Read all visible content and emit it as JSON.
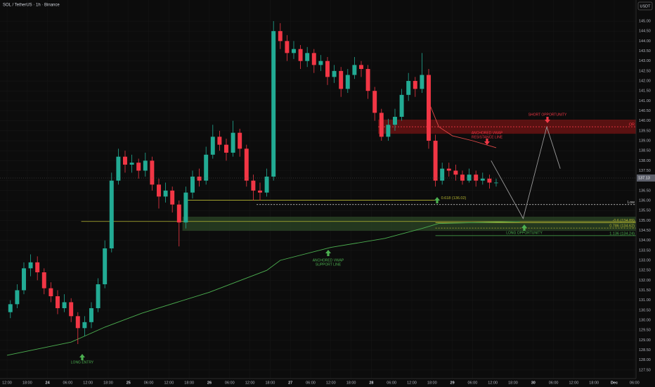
{
  "chart_data": {
    "type": "candlestick",
    "title": "SOL / TetherUS · 1h · Binance",
    "currency": "USDT",
    "up_color": "#22ab94",
    "down_color": "#f23645",
    "grid": true,
    "xlim": [
      -2.08,
      186.46
    ],
    "ylim": [
      127.07,
      146.06
    ],
    "xticks": [
      {
        "value": 0,
        "label": "12:00"
      },
      {
        "value": 6,
        "label": "18:00"
      },
      {
        "value": 12,
        "label": "24"
      },
      {
        "value": 18,
        "label": "06:00"
      },
      {
        "value": 24,
        "label": "12:00"
      },
      {
        "value": 30,
        "label": "18:00"
      },
      {
        "value": 36,
        "label": "25"
      },
      {
        "value": 42,
        "label": "06:00"
      },
      {
        "value": 48,
        "label": "12:00"
      },
      {
        "value": 54,
        "label": "18:00"
      },
      {
        "value": 60,
        "label": "26"
      },
      {
        "value": 66,
        "label": "06:00"
      },
      {
        "value": 72,
        "label": "12:00"
      },
      {
        "value": 78,
        "label": "18:00"
      },
      {
        "value": 84,
        "label": "27"
      },
      {
        "value": 90,
        "label": "06:00"
      },
      {
        "value": 96,
        "label": "12:00"
      },
      {
        "value": 102,
        "label": "18:00"
      },
      {
        "value": 108,
        "label": "28"
      },
      {
        "value": 114,
        "label": "06:00"
      },
      {
        "value": 120,
        "label": "12:00"
      },
      {
        "value": 126,
        "label": "18:00"
      },
      {
        "value": 132,
        "label": "29"
      },
      {
        "value": 138,
        "label": "06:00"
      },
      {
        "value": 144,
        "label": "12:00"
      },
      {
        "value": 150,
        "label": "18:00"
      },
      {
        "value": 156,
        "label": "30"
      },
      {
        "value": 162,
        "label": "06:00"
      },
      {
        "value": 168,
        "label": "12:00"
      },
      {
        "value": 174,
        "label": "18:00"
      },
      {
        "value": 180,
        "label": "Dec"
      },
      {
        "value": 186,
        "label": "06:00"
      }
    ],
    "yticks": [
      {
        "value": 127.5,
        "label": "127.50"
      },
      {
        "value": 128,
        "label": "128.00"
      },
      {
        "value": 128.5,
        "label": "128.50"
      },
      {
        "value": 129,
        "label": "129.00"
      },
      {
        "value": 129.5,
        "label": "129.50"
      },
      {
        "value": 130,
        "label": "130.00"
      },
      {
        "value": 130.5,
        "label": "130.50"
      },
      {
        "value": 131,
        "label": "131.00"
      },
      {
        "value": 131.5,
        "label": "131.50"
      },
      {
        "value": 132,
        "label": "132.00"
      },
      {
        "value": 132.5,
        "label": "132.50"
      },
      {
        "value": 133,
        "label": "133.00"
      },
      {
        "value": 133.5,
        "label": "133.50"
      },
      {
        "value": 134,
        "label": "134.00"
      },
      {
        "value": 134.5,
        "label": "134.50"
      },
      {
        "value": 135,
        "label": "135.00"
      },
      {
        "value": 135.5,
        "label": "135.50"
      },
      {
        "value": 136,
        "label": "136.00"
      },
      {
        "value": 136.5,
        "label": "136.50"
      },
      {
        "value": 137,
        "label": "137.00"
      },
      {
        "value": 137.5,
        "label": "137.50"
      },
      {
        "value": 138,
        "label": "138.00"
      },
      {
        "value": 138.5,
        "label": "138.50"
      },
      {
        "value": 139,
        "label": "139.00"
      },
      {
        "value": 139.5,
        "label": "139.50"
      },
      {
        "value": 140,
        "label": "140.00"
      },
      {
        "value": 140.5,
        "label": "140.50"
      },
      {
        "value": 141,
        "label": "141.00"
      },
      {
        "value": 141.5,
        "label": "141.50"
      },
      {
        "value": 142,
        "label": "142.00"
      },
      {
        "value": 142.5,
        "label": "142.50"
      },
      {
        "value": 143,
        "label": "143.00"
      },
      {
        "value": 143.5,
        "label": "143.50"
      },
      {
        "value": 144,
        "label": "144.00"
      },
      {
        "value": 144.5,
        "label": "144.50"
      },
      {
        "value": 145,
        "label": "145.00"
      }
    ],
    "x": [
      1,
      3,
      5,
      7,
      9,
      11,
      13,
      15,
      17,
      19,
      21,
      23,
      25,
      27,
      29,
      31,
      33,
      35,
      37,
      39,
      41,
      43,
      45,
      47,
      49,
      51,
      53,
      55,
      57,
      59,
      61,
      63,
      65,
      67,
      69,
      71,
      73,
      75,
      77,
      79,
      81,
      83,
      85,
      87,
      89,
      91,
      93,
      95,
      97,
      99,
      101,
      103,
      105,
      107,
      109,
      111,
      113,
      115,
      117,
      119,
      121,
      123,
      125,
      127,
      129,
      131,
      133,
      135,
      137,
      139,
      141,
      143,
      145
    ],
    "candles": [
      [
        130.4,
        131.0,
        130.1,
        130.8
      ],
      [
        130.8,
        131.8,
        130.6,
        131.5
      ],
      [
        131.5,
        132.9,
        131.3,
        132.6
      ],
      [
        132.6,
        133.3,
        132.2,
        132.9
      ],
      [
        132.9,
        133.2,
        132.0,
        132.4
      ],
      [
        132.4,
        132.6,
        131.3,
        131.6
      ],
      [
        131.6,
        131.9,
        130.9,
        131.2
      ],
      [
        131.2,
        131.5,
        130.3,
        130.6
      ],
      [
        130.6,
        131.3,
        130.4,
        130.9
      ],
      [
        130.9,
        131.1,
        129.9,
        130.2
      ],
      [
        130.2,
        130.4,
        128.8,
        129.6
      ],
      [
        129.6,
        130.2,
        129.2,
        129.9
      ],
      [
        129.9,
        130.9,
        129.6,
        130.6
      ],
      [
        130.6,
        132.1,
        130.4,
        131.8
      ],
      [
        131.8,
        134.0,
        131.6,
        133.6
      ],
      [
        133.6,
        137.4,
        133.4,
        137.0
      ],
      [
        137.0,
        138.6,
        136.8,
        138.2
      ],
      [
        138.2,
        138.5,
        137.4,
        137.8
      ],
      [
        137.8,
        138.3,
        137.4,
        137.9
      ],
      [
        137.9,
        138.1,
        137.1,
        137.5
      ],
      [
        137.5,
        138.4,
        137.2,
        138.0
      ],
      [
        138.0,
        138.2,
        136.5,
        136.8
      ],
      [
        136.8,
        137.1,
        135.6,
        136.2
      ],
      [
        136.2,
        136.9,
        135.9,
        136.5
      ],
      [
        136.5,
        136.7,
        135.4,
        135.8
      ],
      [
        135.8,
        136.0,
        133.7,
        134.9
      ],
      [
        134.9,
        136.7,
        134.6,
        136.4
      ],
      [
        136.4,
        137.5,
        136.1,
        137.2
      ],
      [
        137.2,
        137.6,
        136.7,
        137.0
      ],
      [
        137.0,
        138.7,
        136.8,
        138.3
      ],
      [
        138.3,
        139.8,
        138.1,
        139.2
      ],
      [
        139.2,
        139.5,
        138.5,
        138.8
      ],
      [
        138.8,
        139.1,
        138.0,
        138.4
      ],
      [
        138.4,
        140.0,
        138.2,
        139.4
      ],
      [
        139.4,
        139.6,
        138.2,
        138.6
      ],
      [
        138.6,
        138.8,
        136.7,
        137.0
      ],
      [
        137.0,
        137.3,
        136.0,
        136.5
      ],
      [
        136.5,
        136.9,
        136.0,
        136.4
      ],
      [
        136.4,
        137.6,
        136.2,
        137.2
      ],
      [
        137.2,
        145.0,
        137.0,
        144.5
      ],
      [
        144.5,
        144.9,
        143.6,
        144.0
      ],
      [
        144.0,
        144.3,
        143.0,
        143.4
      ],
      [
        143.4,
        144.0,
        143.1,
        143.6
      ],
      [
        143.6,
        143.8,
        142.6,
        143.0
      ],
      [
        143.0,
        143.7,
        142.7,
        143.4
      ],
      [
        143.4,
        143.6,
        142.4,
        142.8
      ],
      [
        142.8,
        143.3,
        142.5,
        143.0
      ],
      [
        143.0,
        143.2,
        141.8,
        142.2
      ],
      [
        142.2,
        142.8,
        141.9,
        142.5
      ],
      [
        142.5,
        142.7,
        141.2,
        141.6
      ],
      [
        141.6,
        142.6,
        141.4,
        142.3
      ],
      [
        142.3,
        143.2,
        142.1,
        142.8
      ],
      [
        142.8,
        143.0,
        142.2,
        142.6
      ],
      [
        142.6,
        142.8,
        141.1,
        141.5
      ],
      [
        141.5,
        141.7,
        140.0,
        140.4
      ],
      [
        140.4,
        140.6,
        139.0,
        139.2
      ],
      [
        139.2,
        140.1,
        139.0,
        139.8
      ],
      [
        139.8,
        140.6,
        139.5,
        140.2
      ],
      [
        140.2,
        141.6,
        140.0,
        141.3
      ],
      [
        141.3,
        142.4,
        141.0,
        142.0
      ],
      [
        142.0,
        142.2,
        141.2,
        141.6
      ],
      [
        141.6,
        143.4,
        141.4,
        142.3
      ],
      [
        142.3,
        142.6,
        138.6,
        139.0
      ],
      [
        139.0,
        139.3,
        136.7,
        137.0
      ],
      [
        137.0,
        137.9,
        136.8,
        137.6
      ],
      [
        137.6,
        137.9,
        137.2,
        137.5
      ],
      [
        137.5,
        137.8,
        137.0,
        137.3
      ],
      [
        137.3,
        137.5,
        136.8,
        137.0
      ],
      [
        137.0,
        137.6,
        136.9,
        137.3
      ],
      [
        137.3,
        137.5,
        136.7,
        137.0
      ],
      [
        137.0,
        137.4,
        136.8,
        137.1
      ],
      [
        137.1,
        137.3,
        136.6,
        136.9
      ],
      [
        136.9,
        137.1,
        136.7,
        136.9
      ]
    ],
    "last_price": 137.13,
    "lines": [
      {
        "color": "#4caf50",
        "x": [
          0,
          19,
          29,
          40,
          60,
          77,
          81,
          96,
          112,
          123,
          128,
          152
        ],
        "values": [
          128.24,
          128.9,
          129.65,
          130.35,
          131.4,
          132.5,
          133.0,
          133.65,
          134.1,
          134.6,
          134.85,
          134.95
        ]
      },
      {
        "color": "#e04848",
        "x": [
          125,
          128,
          132,
          138,
          145
        ],
        "values": [
          140.94,
          139.7,
          139.25,
          139.0,
          138.65
        ]
      },
      {
        "color": "#9a9a9a",
        "x": [
          143.5,
          153,
          160,
          164
        ],
        "values": [
          138.0,
          135.1,
          139.7,
          137.6
        ]
      }
    ],
    "zones": [
      {
        "low": 139.35,
        "high": 140.06,
        "color": "#7a1414",
        "from": 110
      },
      {
        "low": 134.48,
        "high": 135.19,
        "color": "#2d4a28",
        "from": 52
      }
    ],
    "levels": [
      {
        "label": "0.618 (136.02)",
        "value": 136.02,
        "color": "#b5b531",
        "from": 53,
        "to": 127
      },
      {
        "label": "Low",
        "value": 135.8,
        "color": "#cccccc",
        "dash": true,
        "from": 74
      },
      {
        "label": "-0.6 (134.89)",
        "value": 134.89,
        "color": "#b5b531",
        "from": 127
      },
      {
        "label": "0.786 (134.62)",
        "value": 134.62,
        "color": "#b5b531",
        "dash": true,
        "from": 127
      },
      {
        "label": "1.136 (134.24)",
        "value": 134.24,
        "color": "#4caf50",
        "from": 127
      },
      {
        "value": 134.95,
        "color": "#b5b531",
        "from": 22
      },
      {
        "label": "OR",
        "value": 139.7,
        "color": "#f23645",
        "dash": true,
        "from": 110
      }
    ],
    "annotations": [
      {
        "lines": [
          "SHORT OPPORTUNITY"
        ],
        "color": "#f23645",
        "arrow": "down"
      },
      {
        "lines": [
          "ANCHORED VWAP",
          "RESISTANCE LINE"
        ],
        "color": "#f23645",
        "arrow": "down"
      },
      {
        "lines": [
          "LONG OPPORTUNITY"
        ],
        "color": "#4caf50",
        "arrow": "up"
      },
      {
        "lines": [
          "ANCHORED VWAP",
          "SUPPORT LINE"
        ],
        "color": "#4caf50",
        "arrow": "up"
      },
      {
        "lines": [
          "LONG ENTRY"
        ],
        "color": "#4caf50",
        "arrow": "up"
      }
    ]
  }
}
